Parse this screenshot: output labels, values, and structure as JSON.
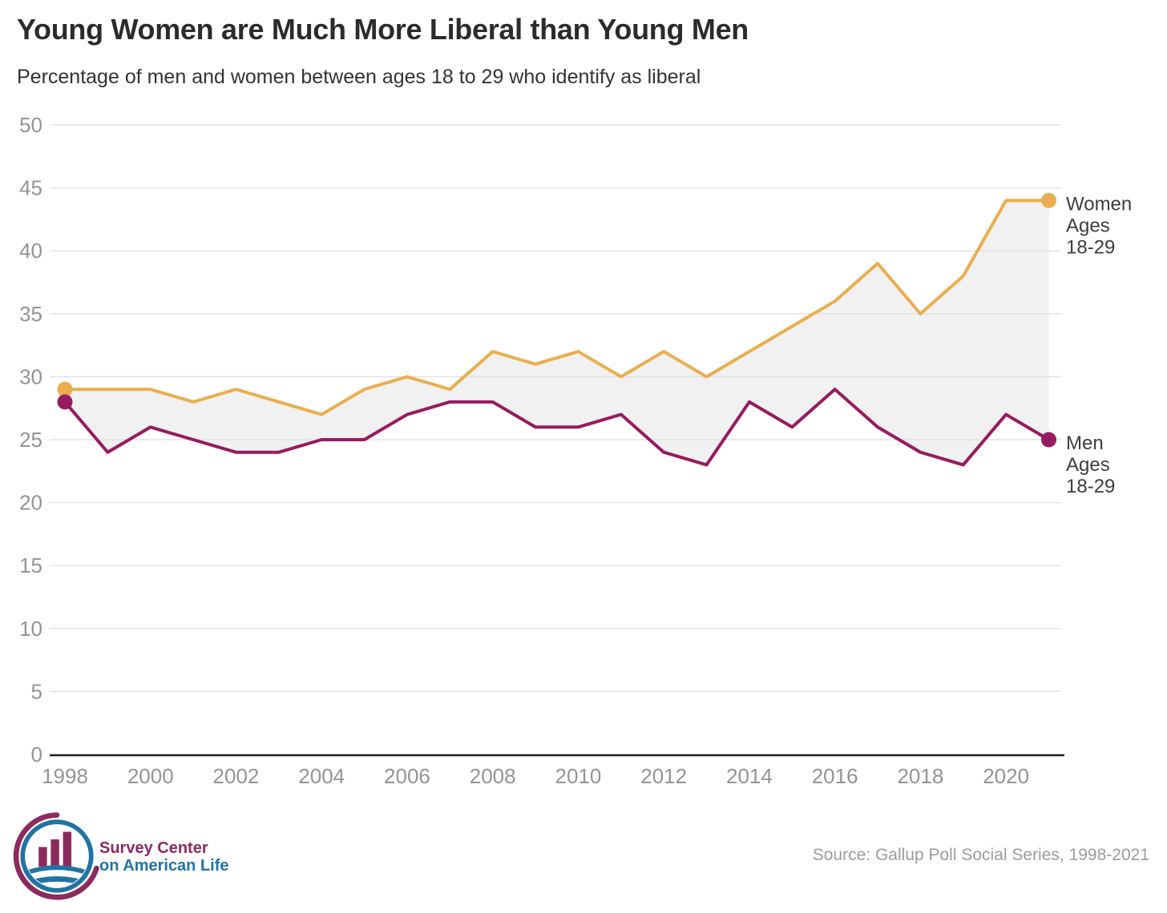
{
  "header": {
    "title": "Young Women are Much More Liberal than Young Men",
    "subtitle": "Percentage of men and women between ages 18 to 29 who identify as liberal"
  },
  "chart_data": {
    "type": "line",
    "x": [
      1998,
      1999,
      2000,
      2001,
      2002,
      2003,
      2004,
      2005,
      2006,
      2007,
      2008,
      2009,
      2010,
      2011,
      2012,
      2013,
      2014,
      2015,
      2016,
      2017,
      2018,
      2019,
      2020,
      2021
    ],
    "series": [
      {
        "name": "Women Ages 18-29",
        "label_lines": [
          "Women",
          "Ages",
          "18-29"
        ],
        "color": "#EAAE4F",
        "values": [
          29,
          29,
          29,
          28,
          29,
          28,
          27,
          29,
          30,
          29,
          32,
          31,
          32,
          30,
          32,
          30,
          32,
          34,
          36,
          39,
          35,
          38,
          44,
          44
        ]
      },
      {
        "name": "Men Ages 18-29",
        "label_lines": [
          "Men",
          "Ages",
          "18-29"
        ],
        "color": "#981A60",
        "values": [
          28,
          24,
          26,
          25,
          24,
          24,
          25,
          25,
          27,
          28,
          28,
          26,
          26,
          27,
          24,
          23,
          28,
          26,
          29,
          26,
          24,
          23,
          27,
          25
        ]
      }
    ],
    "ylim": [
      0,
      50
    ],
    "yticks": [
      0,
      5,
      10,
      15,
      20,
      25,
      30,
      35,
      40,
      45,
      50
    ],
    "xticks": [
      1998,
      2000,
      2002,
      2004,
      2006,
      2008,
      2010,
      2012,
      2014,
      2016,
      2018,
      2020
    ],
    "grid": true,
    "legend_position": "right-end-of-lines",
    "area_fill_between_series": true,
    "area_color": "#F1F1F1",
    "grid_color": "#E0E0E0",
    "axis_color": "#1E1E1E",
    "tick_label_color": "#949494",
    "series_label_color": "#3d3d3d"
  },
  "footer": {
    "logo_line1": "Survey Center",
    "logo_line2": "on American Life",
    "logo_maroon": "#8C2A5E",
    "logo_blue": "#2173A5",
    "source": "Source: Gallup Poll Social Series, 1998-2021"
  }
}
